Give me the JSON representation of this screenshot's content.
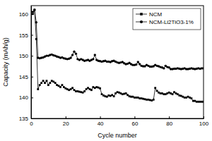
{
  "chart_data": {
    "type": "line",
    "x_label": "Cycle number",
    "y_label": "Capacity (mAh/g)",
    "xlim": [
      0,
      100
    ],
    "xticks": [
      0,
      20,
      40,
      60,
      80,
      100
    ],
    "ylim": [
      135,
      162
    ],
    "yticks": [
      135,
      140,
      145,
      150,
      155,
      160
    ],
    "legend": "upper right",
    "x": [
      1,
      2,
      3,
      4,
      5,
      6,
      7,
      8,
      9,
      10,
      11,
      12,
      13,
      14,
      15,
      16,
      17,
      18,
      19,
      20,
      21,
      22,
      23,
      24,
      25,
      26,
      27,
      28,
      29,
      30,
      31,
      32,
      33,
      34,
      35,
      36,
      37,
      38,
      39,
      40,
      41,
      42,
      43,
      44,
      45,
      46,
      47,
      48,
      49,
      50,
      51,
      52,
      53,
      54,
      55,
      56,
      57,
      58,
      59,
      60,
      61,
      62,
      63,
      64,
      65,
      66,
      67,
      68,
      69,
      70,
      71,
      72,
      73,
      74,
      75,
      76,
      77,
      78,
      79,
      80,
      81,
      82,
      83,
      84,
      85,
      86,
      87,
      88,
      89,
      90,
      91,
      92,
      93,
      94,
      95,
      96,
      97,
      98,
      99,
      100
    ],
    "series": [
      {
        "name": "NCM",
        "color": "#000000",
        "marker": "square",
        "line_style": "solid",
        "values": [
          160.5,
          161,
          154,
          142,
          143,
          143.5,
          144,
          143.5,
          144,
          143,
          143.5,
          144,
          143.8,
          143.5,
          143,
          142.8,
          142.5,
          143,
          142.5,
          142.2,
          142,
          141.8,
          142,
          142.3,
          141.8,
          141.5,
          141.5,
          141.4,
          141.3,
          141.2,
          141.5,
          142,
          142.3,
          142,
          141.8,
          142.5,
          142.3,
          142.5,
          142.4,
          142.2,
          140.8,
          140.5,
          140.3,
          140.2,
          140.5,
          140.4,
          140.6,
          140.3,
          141,
          141.3,
          141.2,
          141,
          140.8,
          140.9,
          141,
          140.6,
          140.3,
          140.2,
          140.2,
          140,
          140,
          140,
          139.8,
          139.8,
          139.7,
          139.6,
          139.5,
          139.5,
          139.4,
          139.3,
          139.5,
          142.3,
          141.6,
          141.2,
          141,
          141,
          140.8,
          140.8,
          141,
          141.2,
          141,
          140.8,
          141.3,
          141,
          140.8,
          140.5,
          140.4,
          140.2,
          140,
          140,
          140.2,
          140,
          139.8,
          139.2,
          139.2,
          139,
          139,
          139,
          139,
          139
        ]
      },
      {
        "name": "NCM-Li2TiO3-1%",
        "color": "#000000",
        "marker": "circle",
        "line_style": "solid",
        "values": [
          160,
          161,
          158,
          149.5,
          149.4,
          149.5,
          149.6,
          149.8,
          150,
          150,
          150.2,
          150.3,
          150.1,
          150,
          149.8,
          149.7,
          149.5,
          149.6,
          149.4,
          149.3,
          149.2,
          149.3,
          149.5,
          150.2,
          151,
          150.5,
          149.2,
          149,
          149.2,
          149,
          148.8,
          148.9,
          149,
          148.8,
          149,
          149.2,
          150.2,
          149,
          148.8,
          148.7,
          148.6,
          148.7,
          148.8,
          148.6,
          148.6,
          148.5,
          148.7,
          148.8,
          148.6,
          148.4,
          148.3,
          148.4,
          148.5,
          148.2,
          148,
          148.1,
          148.3,
          148,
          147.8,
          147.8,
          147.9,
          148.5,
          148,
          147.6,
          147.5,
          147.5,
          147.8,
          147.6,
          147.4,
          147.4,
          147.5,
          147.8,
          147.6,
          147.5,
          147.3,
          147.2,
          147,
          147.6,
          147.3,
          147.2,
          146.8,
          146.8,
          146.9,
          146.9,
          147,
          146.9,
          146.8,
          146.9,
          147,
          146.8,
          146.8,
          146.9,
          147,
          146.9,
          146.8,
          146.9,
          147,
          146.9,
          147,
          147
        ]
      }
    ]
  }
}
